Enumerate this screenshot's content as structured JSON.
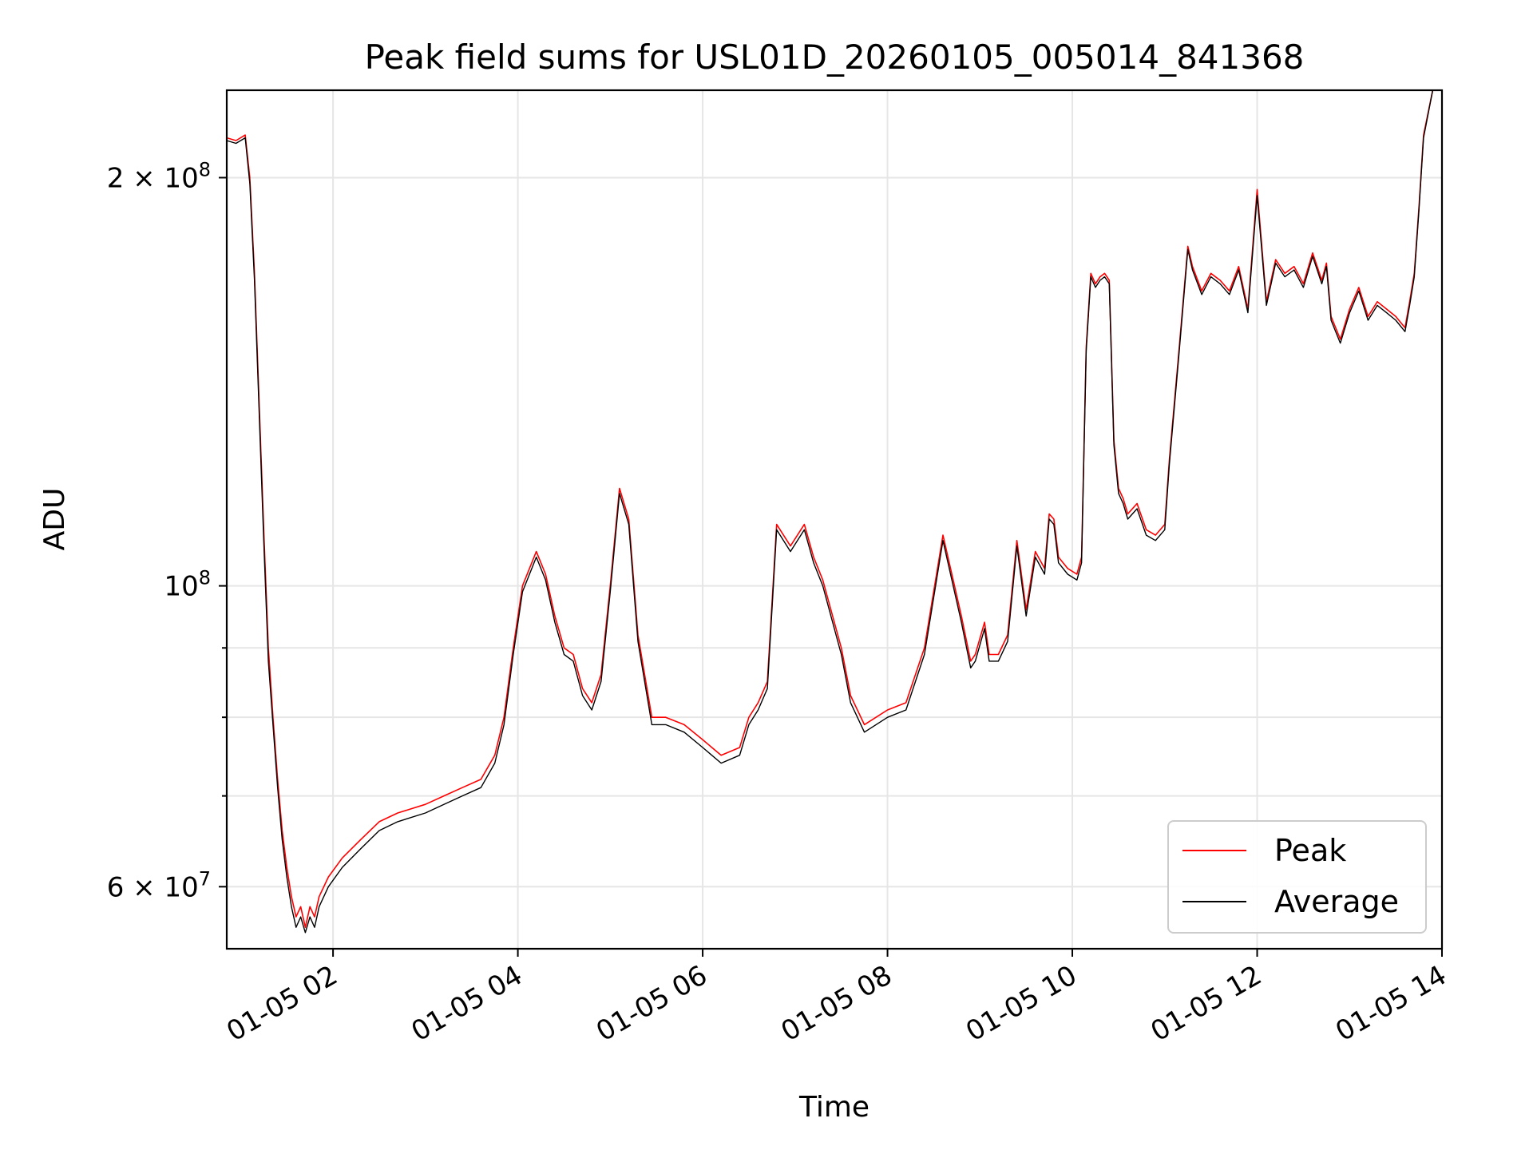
{
  "chart_data": {
    "type": "line",
    "title": "Peak field sums for USL01D_20260105_005014_841368",
    "xlabel": "Time",
    "ylabel": "ADU",
    "yscale": "log",
    "xlim": [
      0.85,
      14.0
    ],
    "ylim": [
      54000000,
      232000000
    ],
    "grid": true,
    "legend_position": "lower-right",
    "x_ticks": [
      {
        "value": 2,
        "label": "01-05 02"
      },
      {
        "value": 4,
        "label": "01-05 04"
      },
      {
        "value": 6,
        "label": "01-05 06"
      },
      {
        "value": 8,
        "label": "01-05 08"
      },
      {
        "value": 10,
        "label": "01-05 10"
      },
      {
        "value": 12,
        "label": "01-05 12"
      },
      {
        "value": 14,
        "label": "01-05 14"
      }
    ],
    "y_ticks": [
      {
        "value": 60000000,
        "base": "6 × 10",
        "exp": "7"
      },
      {
        "value": 100000000,
        "base": "10",
        "exp": "8"
      },
      {
        "value": 200000000,
        "base": "2 × 10",
        "exp": "8"
      }
    ],
    "y_minor_grid": [
      70000000,
      80000000,
      90000000
    ],
    "series": [
      {
        "name": "Peak",
        "color": "#ff0000",
        "x": [
          0.85,
          0.95,
          1.05,
          1.1,
          1.15,
          1.25,
          1.3,
          1.35,
          1.4,
          1.45,
          1.5,
          1.55,
          1.6,
          1.65,
          1.7,
          1.75,
          1.8,
          1.85,
          1.95,
          2.1,
          2.3,
          2.5,
          2.7,
          3.0,
          3.2,
          3.4,
          3.6,
          3.75,
          3.85,
          3.95,
          4.05,
          4.2,
          4.3,
          4.4,
          4.5,
          4.6,
          4.7,
          4.8,
          4.9,
          5.0,
          5.1,
          5.2,
          5.3,
          5.45,
          5.6,
          5.8,
          6.0,
          6.2,
          6.4,
          6.5,
          6.6,
          6.7,
          6.8,
          6.95,
          7.1,
          7.2,
          7.3,
          7.5,
          7.6,
          7.75,
          8.0,
          8.2,
          8.4,
          8.6,
          8.8,
          8.9,
          8.95,
          9.05,
          9.1,
          9.2,
          9.3,
          9.4,
          9.5,
          9.6,
          9.7,
          9.75,
          9.8,
          9.85,
          9.95,
          10.05,
          10.1,
          10.15,
          10.2,
          10.25,
          10.3,
          10.35,
          10.4,
          10.45,
          10.5,
          10.55,
          10.6,
          10.7,
          10.8,
          10.9,
          11.0,
          11.05,
          11.15,
          11.25,
          11.3,
          11.4,
          11.5,
          11.6,
          11.7,
          11.8,
          11.9,
          12.0,
          12.1,
          12.2,
          12.3,
          12.4,
          12.5,
          12.6,
          12.7,
          12.75,
          12.8,
          12.9,
          13.0,
          13.1,
          13.2,
          13.3,
          13.4,
          13.5,
          13.6,
          13.65,
          13.7,
          13.75,
          13.8,
          13.9,
          14.0
        ],
        "values": [
          214000000,
          213000000,
          215000000,
          200000000,
          170000000,
          110000000,
          90000000,
          80000000,
          72000000,
          66000000,
          62000000,
          59000000,
          57000000,
          58000000,
          56000000,
          58000000,
          57000000,
          59000000,
          61000000,
          63000000,
          65000000,
          67000000,
          68000000,
          69000000,
          70000000,
          71000000,
          72000000,
          75000000,
          80000000,
          90000000,
          100000000,
          106000000,
          102000000,
          95000000,
          90000000,
          89000000,
          84000000,
          82000000,
          86000000,
          100000000,
          118000000,
          112000000,
          92000000,
          80000000,
          80000000,
          79000000,
          77000000,
          75000000,
          76000000,
          80000000,
          82000000,
          85000000,
          111000000,
          107000000,
          111000000,
          105000000,
          101000000,
          90000000,
          83000000,
          79000000,
          81000000,
          82000000,
          90000000,
          109000000,
          95000000,
          88000000,
          89000000,
          94000000,
          89000000,
          89000000,
          92000000,
          108000000,
          96000000,
          106000000,
          103000000,
          113000000,
          112000000,
          105000000,
          103000000,
          102000000,
          105000000,
          150000000,
          170000000,
          167000000,
          169000000,
          170000000,
          168000000,
          128000000,
          118000000,
          116000000,
          113000000,
          115000000,
          110000000,
          109000000,
          111000000,
          124000000,
          148000000,
          178000000,
          172000000,
          165000000,
          170000000,
          168000000,
          165000000,
          172000000,
          160000000,
          196000000,
          162000000,
          174000000,
          170000000,
          172000000,
          167000000,
          176000000,
          168000000,
          173000000,
          158000000,
          152000000,
          160000000,
          166000000,
          158000000,
          162000000,
          160000000,
          158000000,
          155000000,
          162000000,
          170000000,
          190000000,
          215000000,
          232000000,
          232000000
        ]
      },
      {
        "name": "Average",
        "color": "#000000",
        "x": [
          0.85,
          0.95,
          1.05,
          1.1,
          1.15,
          1.25,
          1.3,
          1.35,
          1.4,
          1.45,
          1.5,
          1.55,
          1.6,
          1.65,
          1.7,
          1.75,
          1.8,
          1.85,
          1.95,
          2.1,
          2.3,
          2.5,
          2.7,
          3.0,
          3.2,
          3.4,
          3.6,
          3.75,
          3.85,
          3.95,
          4.05,
          4.2,
          4.3,
          4.4,
          4.5,
          4.6,
          4.7,
          4.8,
          4.9,
          5.0,
          5.1,
          5.2,
          5.3,
          5.45,
          5.6,
          5.8,
          6.0,
          6.2,
          6.4,
          6.5,
          6.6,
          6.7,
          6.8,
          6.95,
          7.1,
          7.2,
          7.3,
          7.5,
          7.6,
          7.75,
          8.0,
          8.2,
          8.4,
          8.6,
          8.8,
          8.9,
          8.95,
          9.05,
          9.1,
          9.2,
          9.3,
          9.4,
          9.5,
          9.6,
          9.7,
          9.75,
          9.8,
          9.85,
          9.95,
          10.05,
          10.1,
          10.15,
          10.2,
          10.25,
          10.3,
          10.35,
          10.4,
          10.45,
          10.5,
          10.55,
          10.6,
          10.7,
          10.8,
          10.9,
          11.0,
          11.05,
          11.15,
          11.25,
          11.3,
          11.4,
          11.5,
          11.6,
          11.7,
          11.8,
          11.9,
          12.0,
          12.1,
          12.2,
          12.3,
          12.4,
          12.5,
          12.6,
          12.7,
          12.75,
          12.8,
          12.9,
          13.0,
          13.1,
          13.2,
          13.3,
          13.4,
          13.5,
          13.6,
          13.65,
          13.7,
          13.75,
          13.8,
          13.9,
          14.0
        ],
        "values": [
          213000000,
          212000000,
          214000000,
          198000000,
          168000000,
          108000000,
          88000000,
          79000000,
          71000000,
          65000000,
          61000000,
          58000000,
          56000000,
          57000000,
          55500000,
          57000000,
          56000000,
          58000000,
          60000000,
          62000000,
          64000000,
          66000000,
          67000000,
          68000000,
          69000000,
          70000000,
          71000000,
          74000000,
          79000000,
          89000000,
          99000000,
          105000000,
          101000000,
          94000000,
          89000000,
          88000000,
          83000000,
          81000000,
          85000000,
          99000000,
          117000000,
          111000000,
          91000000,
          79000000,
          79000000,
          78000000,
          76000000,
          74000000,
          75000000,
          79000000,
          81000000,
          84000000,
          110000000,
          106000000,
          110000000,
          104000000,
          100000000,
          89000000,
          82000000,
          78000000,
          80000000,
          81000000,
          89000000,
          108000000,
          94000000,
          87000000,
          88000000,
          93000000,
          88000000,
          88000000,
          91000000,
          107000000,
          95000000,
          105000000,
          102000000,
          112000000,
          111000000,
          104000000,
          102000000,
          101000000,
          104000000,
          149000000,
          169000000,
          166000000,
          168000000,
          169000000,
          167000000,
          127000000,
          117000000,
          115000000,
          112000000,
          114000000,
          109000000,
          108000000,
          110000000,
          123000000,
          147000000,
          177000000,
          171000000,
          164000000,
          169000000,
          167000000,
          164000000,
          171000000,
          159000000,
          194000000,
          161000000,
          173000000,
          169000000,
          171000000,
          166000000,
          175000000,
          167000000,
          172000000,
          157000000,
          151000000,
          159000000,
          165000000,
          157000000,
          161000000,
          159000000,
          157000000,
          154000000,
          161000000,
          169000000,
          189000000,
          214000000,
          232000000,
          232000000
        ]
      }
    ]
  }
}
